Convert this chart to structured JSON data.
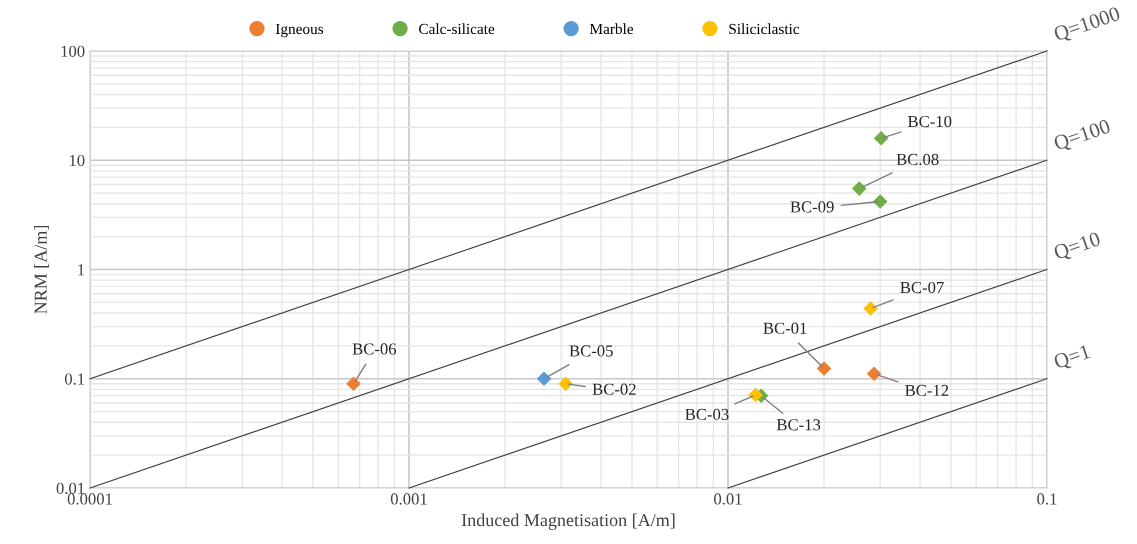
{
  "chart_data": {
    "type": "scatter",
    "xlabel": "Induced Magnetisation [A/m]",
    "ylabel": "NRM [A/m]",
    "log": "xy",
    "xlim": [
      0.0001,
      0.1
    ],
    "ylim": [
      0.01,
      100
    ],
    "xticks": [
      {
        "value": 0.0001,
        "label": "0.0001"
      },
      {
        "value": 0.001,
        "label": "0.001"
      },
      {
        "value": 0.01,
        "label": "0.01"
      },
      {
        "value": 0.1,
        "label": "0.1"
      }
    ],
    "yticks": [
      {
        "value": 0.01,
        "label": "0.01"
      },
      {
        "value": 0.1,
        "label": "0.1"
      },
      {
        "value": 1,
        "label": "1"
      },
      {
        "value": 10,
        "label": "10"
      },
      {
        "value": 100,
        "label": "100"
      }
    ],
    "grid": true,
    "legend": "top",
    "marker": "diamond",
    "series": [
      {
        "name": "Igneous",
        "color": "#ed7d31",
        "x": [
          0.00067,
          0.02,
          0.0287
        ],
        "values": [
          0.09,
          0.124,
          0.111
        ]
      },
      {
        "name": "Calc-silicate",
        "color": "#70ad47",
        "x": [
          0.0127,
          0.0258,
          0.03,
          0.0302
        ],
        "values": [
          0.07,
          5.5,
          4.2,
          15.9
        ]
      },
      {
        "name": "Marble",
        "color": "#5b9bd5",
        "x": [
          0.00265
        ],
        "values": [
          0.1
        ]
      },
      {
        "name": "Siliciclastic",
        "color": "#ffc000",
        "x": [
          0.0031,
          0.0122,
          0.028
        ],
        "values": [
          0.09,
          0.071,
          0.44
        ]
      },
      {
        "name": "Q=1000",
        "type": "line",
        "marker": "none",
        "color": "#404040",
        "x": [
          0.0001,
          0.1
        ],
        "values": [
          0.1,
          100
        ]
      },
      {
        "name": "Q=100",
        "type": "line",
        "marker": "none",
        "color": "#404040",
        "x": [
          0.0001,
          0.1
        ],
        "values": [
          0.01,
          10
        ]
      },
      {
        "name": "Q=10",
        "type": "line",
        "marker": "none",
        "color": "#404040",
        "x": [
          0.001,
          0.1
        ],
        "values": [
          0.01,
          1
        ]
      },
      {
        "name": "Q=1",
        "type": "line",
        "marker": "none",
        "color": "#404040",
        "x": [
          0.01,
          0.1
        ],
        "values": [
          0.01,
          0.1
        ]
      }
    ],
    "annotations": [
      {
        "text": "BC-06",
        "x": 0.00067,
        "y": 0.09
      },
      {
        "text": "BC-05",
        "x": 0.00265,
        "y": 0.1
      },
      {
        "text": "BC-02",
        "x": 0.0031,
        "y": 0.09
      },
      {
        "text": "BC-03",
        "x": 0.0122,
        "y": 0.071
      },
      {
        "text": "BC-13",
        "x": 0.0127,
        "y": 0.07
      },
      {
        "text": "BC-01",
        "x": 0.02,
        "y": 0.124
      },
      {
        "text": "BC-12",
        "x": 0.0287,
        "y": 0.111
      },
      {
        "text": "BC-07",
        "x": 0.028,
        "y": 0.44
      },
      {
        "text": "BC.08",
        "x": 0.0258,
        "y": 5.5
      },
      {
        "text": "BC-09",
        "x": 0.03,
        "y": 4.2
      },
      {
        "text": "BC-10",
        "x": 0.0302,
        "y": 15.9
      }
    ]
  }
}
